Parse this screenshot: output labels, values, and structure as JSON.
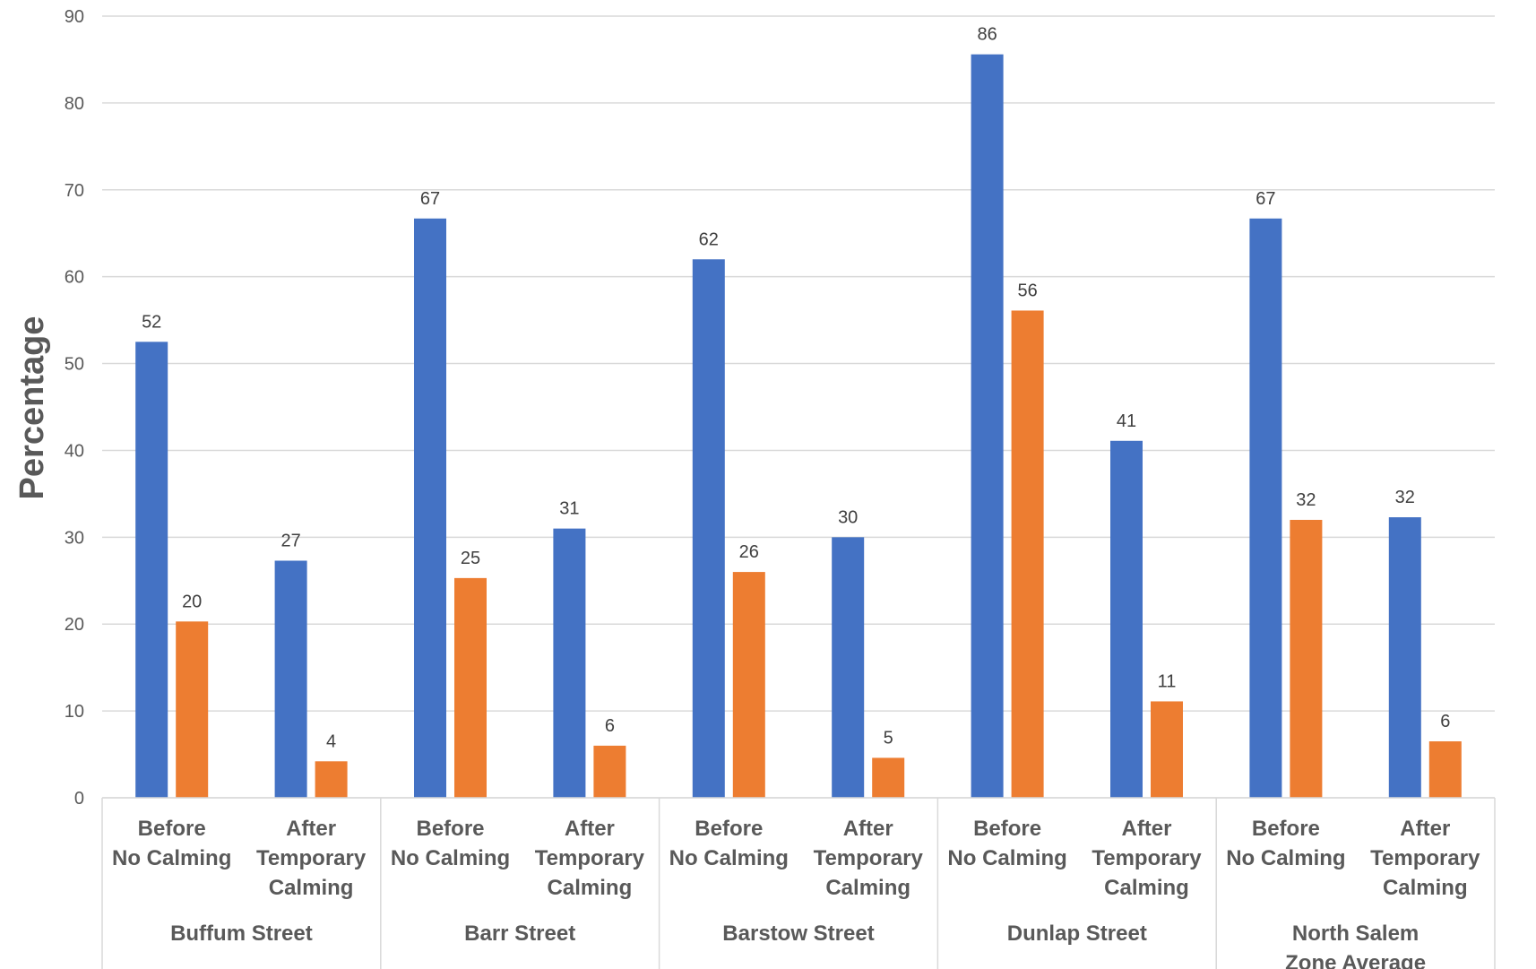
{
  "chart_data": {
    "type": "bar",
    "ylabel": "Percentage",
    "ylim": [
      0,
      90
    ],
    "yticks": [
      0,
      10,
      20,
      30,
      40,
      50,
      60,
      70,
      80,
      90
    ],
    "grid": true,
    "legend": "none",
    "groups": [
      {
        "name": "Buffum Street",
        "label_lines": [
          "Buffum Street"
        ]
      },
      {
        "name": "Barr Street",
        "label_lines": [
          "Barr Street"
        ]
      },
      {
        "name": "Barstow Street",
        "label_lines": [
          "Barstow Street"
        ]
      },
      {
        "name": "Dunlap Street",
        "label_lines": [
          "Dunlap Street"
        ]
      },
      {
        "name": "North Salem Zone Average",
        "label_lines": [
          "North Salem",
          "Zone Average"
        ]
      }
    ],
    "subcategories": [
      {
        "name": "Before No Calming",
        "label_lines": [
          "Before",
          "No Calming"
        ]
      },
      {
        "name": "After Temporary Calming",
        "label_lines": [
          "After",
          "Temporary",
          "Calming"
        ]
      }
    ],
    "categories": [
      "Buffum Street - Before No Calming",
      "Buffum Street - After Temporary Calming",
      "Barr Street - Before No Calming",
      "Barr Street - After Temporary Calming",
      "Barstow Street - Before No Calming",
      "Barstow Street - After Temporary Calming",
      "Dunlap Street - Before No Calming",
      "Dunlap Street - After Temporary Calming",
      "North Salem Zone Average - Before No Calming",
      "North Salem Zone Average - After Temporary Calming"
    ],
    "series": [
      {
        "color": "#4472C4",
        "values": [
          52.5,
          27.3,
          66.7,
          31.0,
          62.0,
          30.0,
          85.6,
          41.1,
          66.7,
          32.3
        ],
        "labels": [
          "52",
          "27",
          "67",
          "31",
          "62",
          "30",
          "86",
          "41",
          "67",
          "32"
        ]
      },
      {
        "color": "#ED7D31",
        "values": [
          20.3,
          4.2,
          25.3,
          6.0,
          26.0,
          4.6,
          56.1,
          11.1,
          32.0,
          6.5
        ],
        "labels": [
          "20",
          "4",
          "25",
          "6",
          "26",
          "5",
          "56",
          "11",
          "32",
          "6"
        ]
      }
    ]
  }
}
